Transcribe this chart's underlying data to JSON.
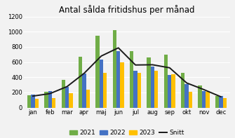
{
  "title": "Antal sålda fritidshus per månad",
  "months": [
    "jan",
    "feb",
    "mar",
    "apr",
    "maj",
    "jun",
    "jul",
    "aug",
    "sep",
    "okt",
    "nov",
    "dec"
  ],
  "y2021": [
    160,
    210,
    370,
    670,
    950,
    1025,
    740,
    660,
    700,
    460,
    295,
    155
  ],
  "y2022": [
    175,
    220,
    270,
    450,
    635,
    740,
    490,
    545,
    435,
    310,
    215,
    150
  ],
  "y2023": [
    120,
    125,
    195,
    240,
    455,
    600,
    455,
    490,
    440,
    205,
    205,
    125
  ],
  "snitt": [
    152,
    185,
    278,
    453,
    680,
    788,
    562,
    565,
    525,
    325,
    238,
    143
  ],
  "color_2021": "#70ad47",
  "color_2022": "#4472c4",
  "color_2023": "#ffc000",
  "color_snitt": "#1a1a1a",
  "bg_color": "#f2f2f2",
  "grid_color": "#ffffff",
  "ylim": [
    0,
    1200
  ],
  "yticks": [
    0,
    200,
    400,
    600,
    800,
    1000,
    1200
  ],
  "title_fontsize": 8.5,
  "legend_fontsize": 6.5,
  "tick_fontsize": 6,
  "bar_width": 0.22,
  "line_width": 1.4
}
